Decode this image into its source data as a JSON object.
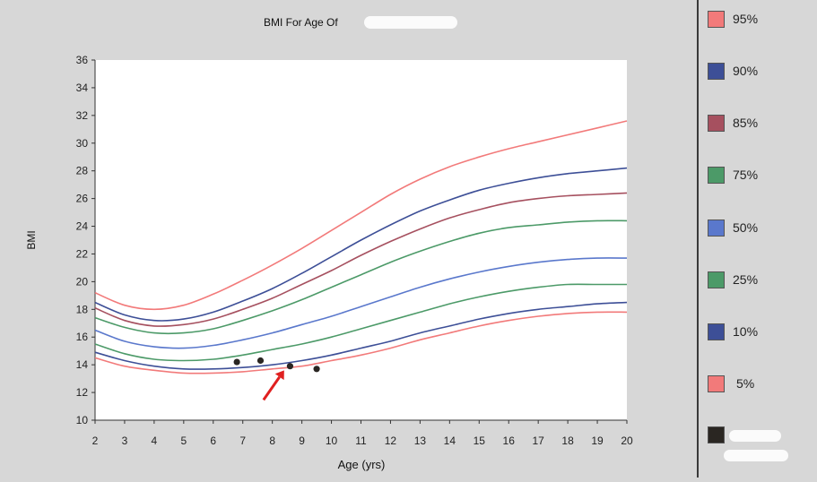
{
  "chart_data": {
    "type": "line",
    "title": "BMI For Age Of",
    "xlabel": "Age (yrs)",
    "ylabel": "BMI",
    "xlim": [
      2,
      20
    ],
    "ylim": [
      10,
      36
    ],
    "xticks": [
      2,
      3,
      4,
      5,
      6,
      7,
      8,
      9,
      10,
      11,
      12,
      13,
      14,
      15,
      16,
      17,
      18,
      19,
      20
    ],
    "yticks": [
      10,
      12,
      14,
      16,
      18,
      20,
      22,
      24,
      26,
      28,
      30,
      32,
      34,
      36
    ],
    "grid": false,
    "legend_position": "right",
    "x": [
      2,
      3,
      4,
      5,
      6,
      7,
      8,
      9,
      10,
      11,
      12,
      13,
      14,
      15,
      16,
      17,
      18,
      19,
      20
    ],
    "series": [
      {
        "name": "95%",
        "color": "#f27a7a",
        "values": [
          19.2,
          18.3,
          18.0,
          18.3,
          19.1,
          20.1,
          21.2,
          22.4,
          23.7,
          25.0,
          26.3,
          27.4,
          28.3,
          29.0,
          29.6,
          30.1,
          30.6,
          31.1,
          31.6
        ]
      },
      {
        "name": "90%",
        "color": "#3d4f97",
        "values": [
          18.5,
          17.6,
          17.2,
          17.3,
          17.8,
          18.6,
          19.5,
          20.6,
          21.8,
          23.0,
          24.1,
          25.1,
          25.9,
          26.6,
          27.1,
          27.5,
          27.8,
          28.0,
          28.2
        ]
      },
      {
        "name": "85%",
        "color": "#a6505f",
        "values": [
          18.1,
          17.2,
          16.8,
          16.9,
          17.3,
          18.0,
          18.8,
          19.8,
          20.8,
          21.9,
          22.9,
          23.8,
          24.6,
          25.2,
          25.7,
          26.0,
          26.2,
          26.3,
          26.4
        ]
      },
      {
        "name": "75%",
        "color": "#4c9a68",
        "values": [
          17.4,
          16.7,
          16.3,
          16.3,
          16.6,
          17.2,
          17.9,
          18.7,
          19.6,
          20.5,
          21.4,
          22.2,
          22.9,
          23.5,
          23.9,
          24.1,
          24.3,
          24.4,
          24.4
        ]
      },
      {
        "name": "50%",
        "color": "#5a78cc",
        "values": [
          16.5,
          15.7,
          15.3,
          15.2,
          15.4,
          15.8,
          16.3,
          16.9,
          17.5,
          18.2,
          18.9,
          19.6,
          20.2,
          20.7,
          21.1,
          21.4,
          21.6,
          21.7,
          21.7
        ]
      },
      {
        "name": "25%",
        "color": "#4c9a68",
        "values": [
          15.5,
          14.8,
          14.4,
          14.3,
          14.4,
          14.7,
          15.1,
          15.5,
          16.0,
          16.6,
          17.2,
          17.8,
          18.4,
          18.9,
          19.3,
          19.6,
          19.8,
          19.8,
          19.8
        ]
      },
      {
        "name": "10%",
        "color": "#3d4f97",
        "values": [
          14.9,
          14.3,
          13.9,
          13.7,
          13.7,
          13.8,
          14.0,
          14.3,
          14.7,
          15.2,
          15.7,
          16.3,
          16.8,
          17.3,
          17.7,
          18.0,
          18.2,
          18.4,
          18.5
        ]
      },
      {
        "name": "5%",
        "color": "#f27a7a",
        "values": [
          14.5,
          13.9,
          13.6,
          13.4,
          13.4,
          13.5,
          13.7,
          13.9,
          14.3,
          14.7,
          15.2,
          15.8,
          16.3,
          16.8,
          17.2,
          17.5,
          17.7,
          17.8,
          17.8
        ]
      }
    ],
    "points": {
      "color": "#2a2622",
      "x": [
        6.8,
        7.6,
        8.6,
        9.5
      ],
      "y": [
        14.2,
        14.3,
        13.9,
        13.7
      ]
    },
    "annotation": {
      "type": "arrow",
      "color": "#e02020",
      "target": [
        8.4,
        13.6
      ]
    }
  },
  "legend": {
    "items": [
      {
        "label": "95%",
        "color": "#f27a7a"
      },
      {
        "label": "90%",
        "color": "#3d4f97"
      },
      {
        "label": "85%",
        "color": "#a6505f"
      },
      {
        "label": "75%",
        "color": "#4c9a68"
      },
      {
        "label": "50%",
        "color": "#5a78cc"
      },
      {
        "label": "25%",
        "color": "#4c9a68"
      },
      {
        "label": "10%",
        "color": "#3d4f97"
      },
      {
        "label": "5%",
        "color": "#f27a7a"
      }
    ],
    "patient_swatch_color": "#2a2622"
  }
}
